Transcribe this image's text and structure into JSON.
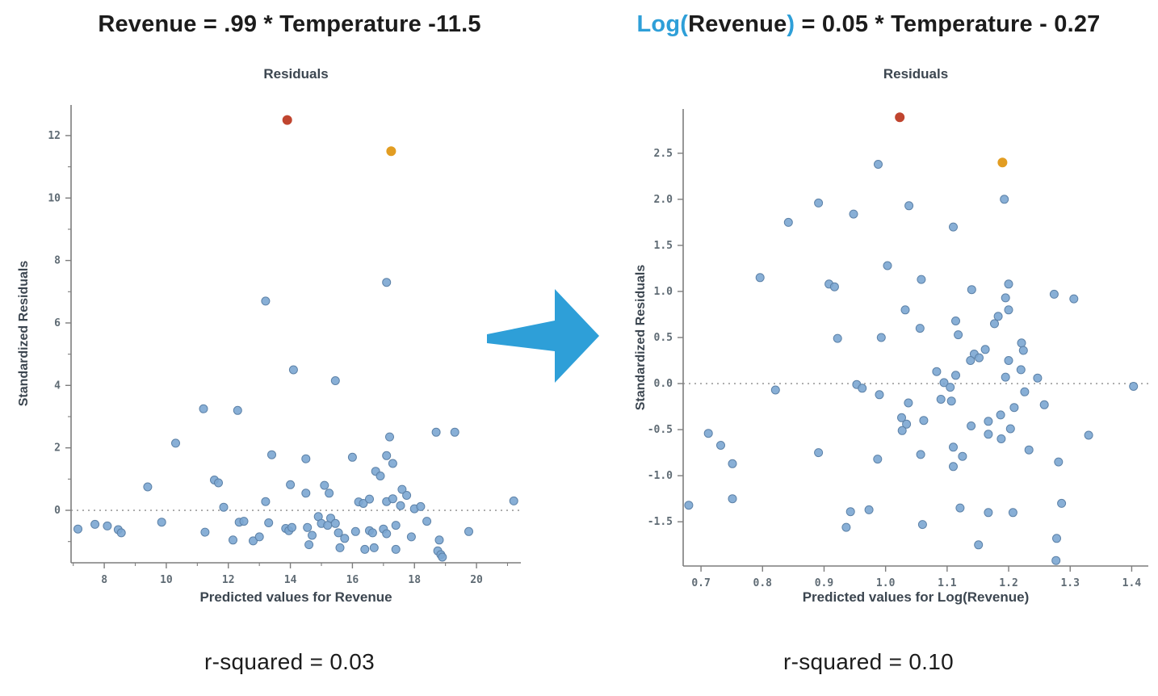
{
  "colors": {
    "accent_blue": "#2e9fd8",
    "point_fill": "#7ba6d2",
    "point_edge": "#5d82a8",
    "outlier_red": "#c0452f",
    "outlier_orange": "#e29d22",
    "axis": "#7d7d7d",
    "zero_line": "#8a8a8a"
  },
  "left_panel": {
    "equation_segments": [
      {
        "text": "Revenue = .99 * Temperature -11.5",
        "accent": false
      }
    ],
    "caption": "r-squared = 0.03"
  },
  "right_panel": {
    "equation_segments": [
      {
        "text": "Log(",
        "accent": true
      },
      {
        "text": "Revenue",
        "accent": false
      },
      {
        "text": ")",
        "accent": true
      },
      {
        "text": " = 0.05 * Temperature - 0.27",
        "accent": false
      }
    ],
    "caption": "r-squared = 0.10"
  },
  "arrow": {
    "direction": "right"
  },
  "chart_data": [
    {
      "type": "scatter",
      "title": "Residuals",
      "xlabel": "Predicted values for Revenue",
      "ylabel": "Standardized Residuals",
      "xlim": [
        6.93,
        21.43
      ],
      "ylim": [
        -1.68,
        12.98
      ],
      "grid": false,
      "zero_line": true,
      "xticks": {
        "major": [
          [
            8,
            "8"
          ],
          [
            10,
            "10"
          ],
          [
            12,
            "12"
          ],
          [
            14,
            "14"
          ],
          [
            16,
            "16"
          ],
          [
            18,
            "18"
          ],
          [
            20,
            "20"
          ]
        ],
        "minor": [
          7,
          9,
          11,
          13,
          15,
          17,
          19,
          21
        ]
      },
      "yticks": {
        "major": [
          [
            0,
            "0"
          ],
          [
            2,
            "2"
          ],
          [
            4,
            "4"
          ],
          [
            6,
            "6"
          ],
          [
            8,
            "8"
          ],
          [
            10,
            "10"
          ],
          [
            12,
            "12"
          ]
        ],
        "minor": [
          -1,
          1,
          3,
          5,
          7,
          9,
          11,
          13
        ]
      },
      "points": [
        [
          17.1,
          7.3
        ],
        [
          13.2,
          6.7
        ],
        [
          14.1,
          4.5
        ],
        [
          15.45,
          4.15
        ],
        [
          11.2,
          3.25
        ],
        [
          12.3,
          3.2
        ],
        [
          10.3,
          2.15
        ],
        [
          18.7,
          2.5
        ],
        [
          19.3,
          2.5
        ],
        [
          17.2,
          2.35
        ],
        [
          13.4,
          1.78
        ],
        [
          14.5,
          1.65
        ],
        [
          16.0,
          1.7
        ],
        [
          17.1,
          1.75
        ],
        [
          17.3,
          1.5
        ],
        [
          16.75,
          1.25
        ],
        [
          16.9,
          1.1
        ],
        [
          9.4,
          0.75
        ],
        [
          11.55,
          0.97
        ],
        [
          11.68,
          0.88
        ],
        [
          14.0,
          0.82
        ],
        [
          14.5,
          0.55
        ],
        [
          15.1,
          0.8
        ],
        [
          15.25,
          0.55
        ],
        [
          17.6,
          0.67
        ],
        [
          17.75,
          0.48
        ],
        [
          13.2,
          0.28
        ],
        [
          16.2,
          0.27
        ],
        [
          16.35,
          0.22
        ],
        [
          16.55,
          0.36
        ],
        [
          17.1,
          0.28
        ],
        [
          17.3,
          0.37
        ],
        [
          17.55,
          0.15
        ],
        [
          18.0,
          0.05
        ],
        [
          18.2,
          0.12
        ],
        [
          11.85,
          0.1
        ],
        [
          21.2,
          0.3
        ],
        [
          7.15,
          -0.6
        ],
        [
          7.7,
          -0.45
        ],
        [
          8.1,
          -0.5
        ],
        [
          8.45,
          -0.62
        ],
        [
          8.55,
          -0.72
        ],
        [
          9.85,
          -0.38
        ],
        [
          11.25,
          -0.7
        ],
        [
          12.15,
          -0.95
        ],
        [
          12.35,
          -0.38
        ],
        [
          12.5,
          -0.35
        ],
        [
          12.8,
          -0.98
        ],
        [
          13.0,
          -0.85
        ],
        [
          13.3,
          -0.4
        ],
        [
          13.85,
          -0.58
        ],
        [
          13.95,
          -0.65
        ],
        [
          14.05,
          -0.55
        ],
        [
          14.9,
          -0.2
        ],
        [
          15.0,
          -0.42
        ],
        [
          15.2,
          -0.48
        ],
        [
          15.3,
          -0.25
        ],
        [
          15.45,
          -0.42
        ],
        [
          14.55,
          -0.55
        ],
        [
          14.7,
          -0.8
        ],
        [
          14.6,
          -1.1
        ],
        [
          15.55,
          -0.72
        ],
        [
          15.75,
          -0.9
        ],
        [
          15.6,
          -1.2
        ],
        [
          16.1,
          -0.68
        ],
        [
          16.55,
          -0.65
        ],
        [
          16.65,
          -0.72
        ],
        [
          17.0,
          -0.6
        ],
        [
          17.1,
          -0.75
        ],
        [
          17.4,
          -0.48
        ],
        [
          16.4,
          -1.25
        ],
        [
          16.7,
          -1.2
        ],
        [
          17.4,
          -1.25
        ],
        [
          17.9,
          -0.85
        ],
        [
          18.4,
          -0.35
        ],
        [
          18.8,
          -0.95
        ],
        [
          18.75,
          -1.3
        ],
        [
          18.85,
          -1.42
        ],
        [
          18.9,
          -1.5
        ],
        [
          19.75,
          -0.68
        ]
      ],
      "outliers": [
        {
          "x": 13.9,
          "y": 12.5,
          "color": "outlier_red"
        },
        {
          "x": 17.25,
          "y": 11.5,
          "color": "outlier_orange"
        }
      ]
    },
    {
      "type": "scatter",
      "title": "Residuals",
      "xlabel": "Predicted values for Log(Revenue)",
      "ylabel": "Standardized Residuals",
      "xlim": [
        0.671,
        1.427
      ],
      "ylim": [
        -1.98,
        2.98
      ],
      "grid": false,
      "zero_line": true,
      "xticks": {
        "major": [
          [
            0.7,
            "0.7"
          ],
          [
            0.8,
            "0.8"
          ],
          [
            0.9,
            "0.9"
          ],
          [
            1.0,
            "1.0"
          ],
          [
            1.1,
            "1.1"
          ],
          [
            1.2,
            "1.2"
          ],
          [
            1.3,
            "1.3"
          ],
          [
            1.4,
            "1.4"
          ]
        ],
        "minor": []
      },
      "yticks": {
        "major": [
          [
            2.5,
            "2.5"
          ],
          [
            2.0,
            "2.0"
          ],
          [
            1.5,
            "1.5"
          ],
          [
            1.0,
            "1.0"
          ],
          [
            0.5,
            "0.5"
          ],
          [
            0.0,
            "0.0"
          ],
          [
            -0.5,
            "-0.5"
          ],
          [
            -1.0,
            "-1.0"
          ],
          [
            -1.5,
            "-1.5"
          ]
        ],
        "minor": []
      },
      "points": [
        [
          0.988,
          2.38
        ],
        [
          1.193,
          2.0
        ],
        [
          1.038,
          1.93
        ],
        [
          0.891,
          1.96
        ],
        [
          0.948,
          1.84
        ],
        [
          0.842,
          1.75
        ],
        [
          1.11,
          1.7
        ],
        [
          1.003,
          1.28
        ],
        [
          0.796,
          1.15
        ],
        [
          1.058,
          1.13
        ],
        [
          0.908,
          1.08
        ],
        [
          0.917,
          1.05
        ],
        [
          1.2,
          1.08
        ],
        [
          1.14,
          1.02
        ],
        [
          1.195,
          0.93
        ],
        [
          1.274,
          0.97
        ],
        [
          1.306,
          0.92
        ],
        [
          1.032,
          0.8
        ],
        [
          1.2,
          0.8
        ],
        [
          1.183,
          0.73
        ],
        [
          1.177,
          0.65
        ],
        [
          1.114,
          0.68
        ],
        [
          1.056,
          0.6
        ],
        [
          1.118,
          0.53
        ],
        [
          0.922,
          0.49
        ],
        [
          0.993,
          0.5
        ],
        [
          1.221,
          0.44
        ],
        [
          1.224,
          0.36
        ],
        [
          1.144,
          0.32
        ],
        [
          1.152,
          0.28
        ],
        [
          1.162,
          0.37
        ],
        [
          1.138,
          0.25
        ],
        [
          1.2,
          0.25
        ],
        [
          1.22,
          0.15
        ],
        [
          1.083,
          0.13
        ],
        [
          1.114,
          0.09
        ],
        [
          1.195,
          0.07
        ],
        [
          1.247,
          0.06
        ],
        [
          1.095,
          0.01
        ],
        [
          1.105,
          -0.04
        ],
        [
          0.953,
          -0.01
        ],
        [
          0.962,
          -0.05
        ],
        [
          1.403,
          -0.03
        ],
        [
          0.821,
          -0.07
        ],
        [
          0.99,
          -0.12
        ],
        [
          1.226,
          -0.09
        ],
        [
          1.09,
          -0.17
        ],
        [
          1.107,
          -0.19
        ],
        [
          1.037,
          -0.21
        ],
        [
          1.209,
          -0.26
        ],
        [
          1.258,
          -0.23
        ],
        [
          1.187,
          -0.34
        ],
        [
          1.062,
          -0.4
        ],
        [
          1.167,
          -0.41
        ],
        [
          1.139,
          -0.46
        ],
        [
          1.203,
          -0.49
        ],
        [
          1.026,
          -0.37
        ],
        [
          1.034,
          -0.44
        ],
        [
          1.027,
          -0.51
        ],
        [
          0.712,
          -0.54
        ],
        [
          1.167,
          -0.55
        ],
        [
          1.188,
          -0.6
        ],
        [
          1.33,
          -0.56
        ],
        [
          0.732,
          -0.67
        ],
        [
          1.233,
          -0.72
        ],
        [
          1.11,
          -0.69
        ],
        [
          0.891,
          -0.75
        ],
        [
          1.125,
          -0.79
        ],
        [
          0.987,
          -0.82
        ],
        [
          1.057,
          -0.77
        ],
        [
          0.751,
          -0.87
        ],
        [
          1.11,
          -0.9
        ],
        [
          1.281,
          -0.85
        ],
        [
          0.751,
          -1.25
        ],
        [
          0.68,
          -1.32
        ],
        [
          1.121,
          -1.35
        ],
        [
          1.167,
          -1.4
        ],
        [
          1.207,
          -1.4
        ],
        [
          1.286,
          -1.3
        ],
        [
          0.943,
          -1.39
        ],
        [
          0.973,
          -1.37
        ],
        [
          0.936,
          -1.56
        ],
        [
          1.06,
          -1.53
        ],
        [
          1.151,
          -1.75
        ],
        [
          1.278,
          -1.68
        ],
        [
          1.277,
          -1.92
        ]
      ],
      "outliers": [
        {
          "x": 1.023,
          "y": 2.89,
          "color": "outlier_red"
        },
        {
          "x": 1.19,
          "y": 2.4,
          "color": "outlier_orange"
        }
      ]
    }
  ]
}
